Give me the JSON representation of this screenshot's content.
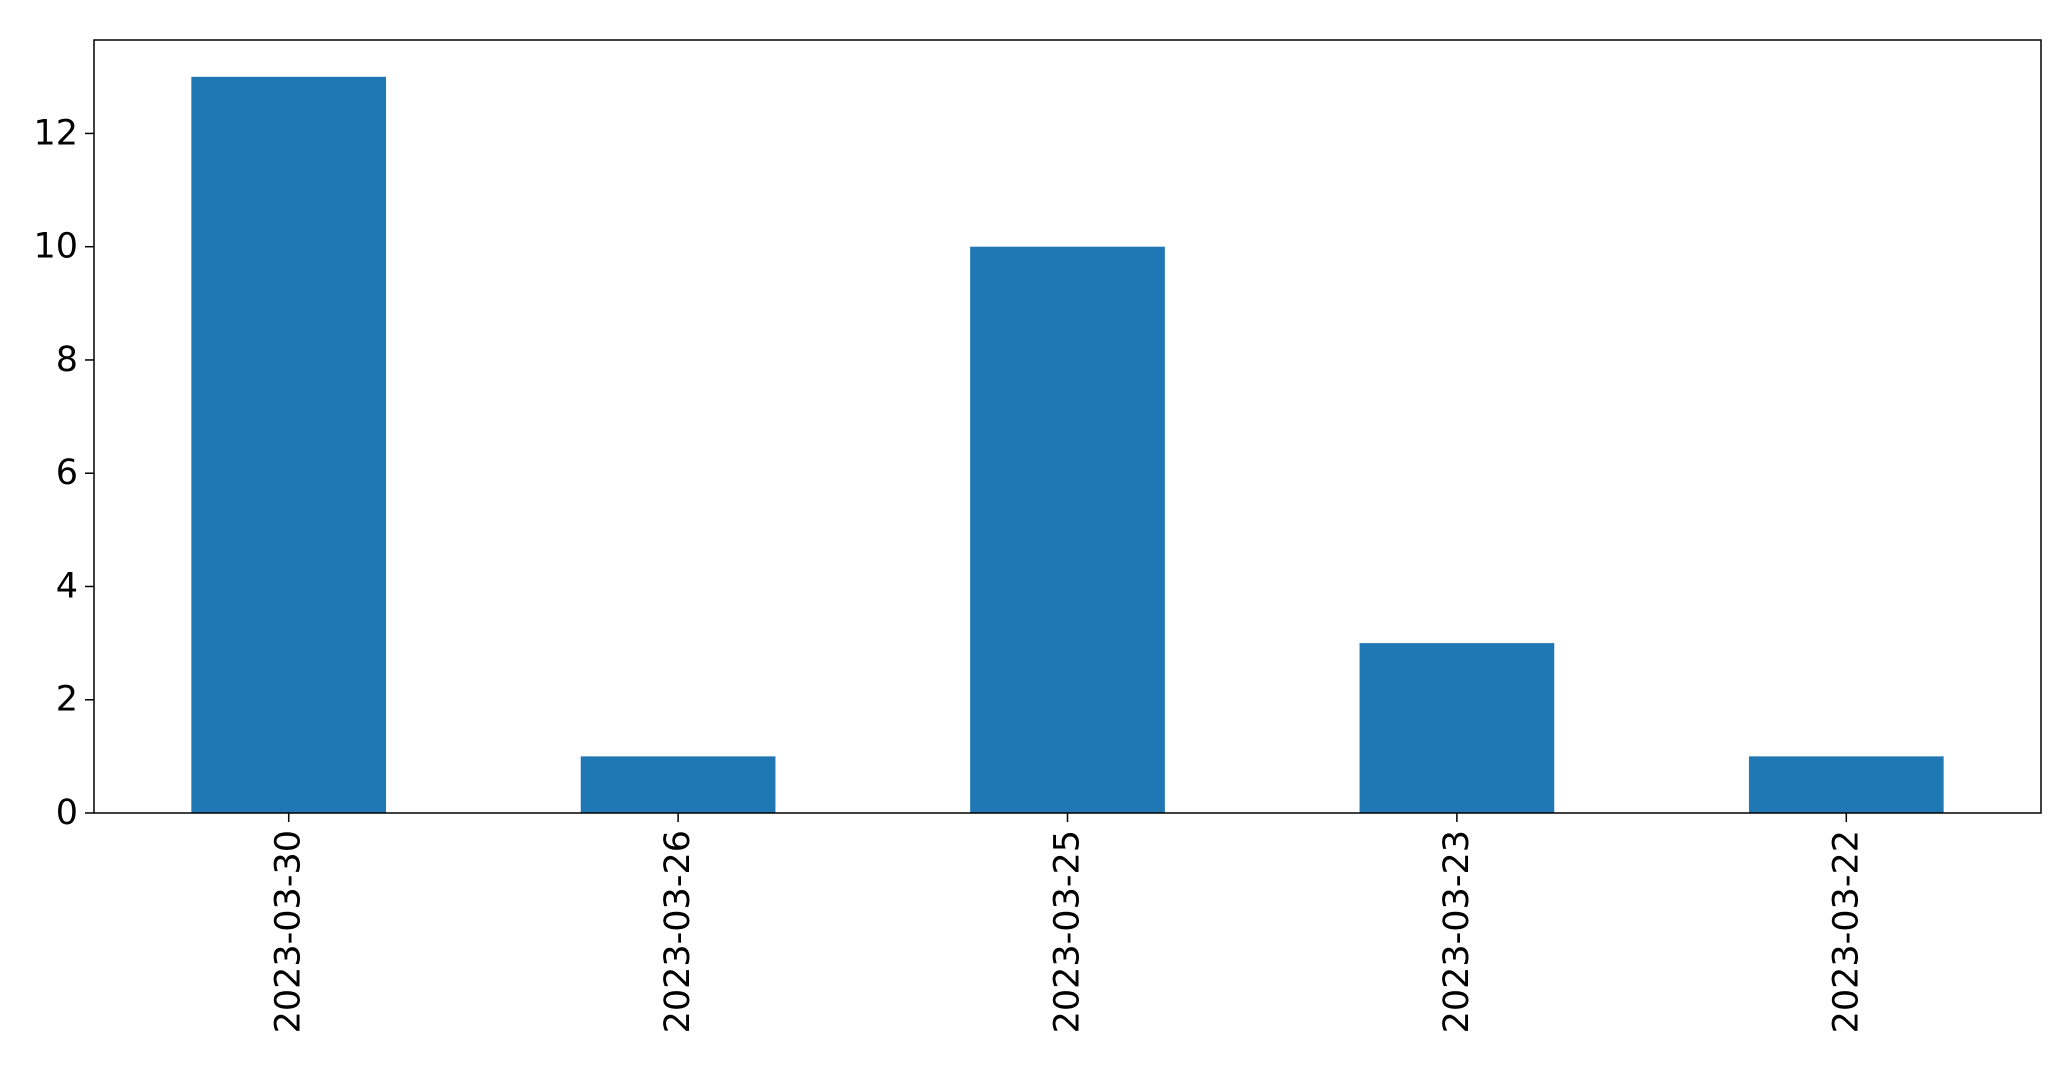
{
  "chart_data": {
    "type": "bar",
    "title": "",
    "xlabel": "",
    "ylabel": "",
    "categories": [
      "2023-03-30",
      "2023-03-26",
      "2023-03-25",
      "2023-03-23",
      "2023-03-22"
    ],
    "values": [
      13,
      1,
      10,
      3,
      1
    ],
    "ylim": [
      0,
      13.65
    ],
    "yticks": [
      0,
      2,
      4,
      6,
      8,
      10,
      12
    ],
    "xtick_rotation": "vertical",
    "grid": false,
    "legend": "none",
    "colors": {
      "bar": "#1f77b4",
      "axes": "#000000",
      "background": "#ffffff"
    }
  }
}
